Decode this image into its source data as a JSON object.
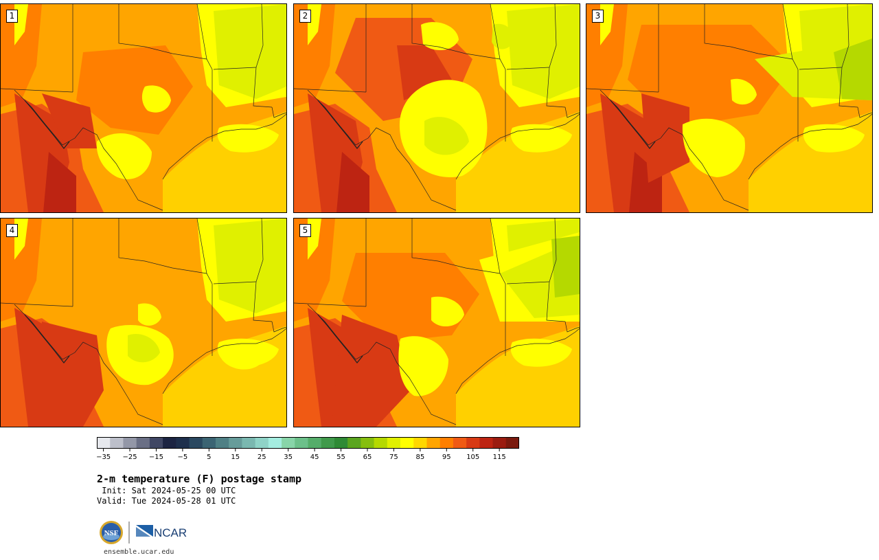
{
  "figure": {
    "title": "2-m temperature (F) postage stamp",
    "init_label": "Init:",
    "init_value": "Sat 2024-05-25 00 UTC",
    "valid_label": "Valid:",
    "valid_value": "Tue 2024-05-28 01 UTC",
    "credit": "ensemble.ucar.edu"
  },
  "logos": {
    "nsf": "NSF",
    "ncar": "NCAR"
  },
  "members": [
    {
      "label": "1",
      "variant": 1
    },
    {
      "label": "2",
      "variant": 2
    },
    {
      "label": "3",
      "variant": 3
    },
    {
      "label": "4",
      "variant": 4
    },
    {
      "label": "5",
      "variant": 5
    }
  ],
  "colorbar": {
    "ticks": [
      "−35",
      "−25",
      "−15",
      "−5",
      "5",
      "15",
      "25",
      "35",
      "45",
      "55",
      "65",
      "75",
      "85",
      "95",
      "105",
      "115"
    ],
    "min": -40,
    "max": 120,
    "step": 5,
    "colors": [
      "#e6e8ed",
      "#bcbfca",
      "#9397a7",
      "#6a6f85",
      "#404764",
      "#1c2442",
      "#1e2f4c",
      "#2a4860",
      "#3b6473",
      "#4f8085",
      "#669c9a",
      "#7ab8b0",
      "#8fd3c7",
      "#a4ede0",
      "#88d5a9",
      "#6cc08a",
      "#55ad6a",
      "#409a4b",
      "#2f8a35",
      "#5aa51f",
      "#86bf0e",
      "#b5d900",
      "#e0f000",
      "#ffff00",
      "#ffd700",
      "#ffa500",
      "#ff7f00",
      "#f05a14",
      "#d83a14",
      "#bd2412",
      "#9b1c10",
      "#7a1a0e"
    ]
  }
}
